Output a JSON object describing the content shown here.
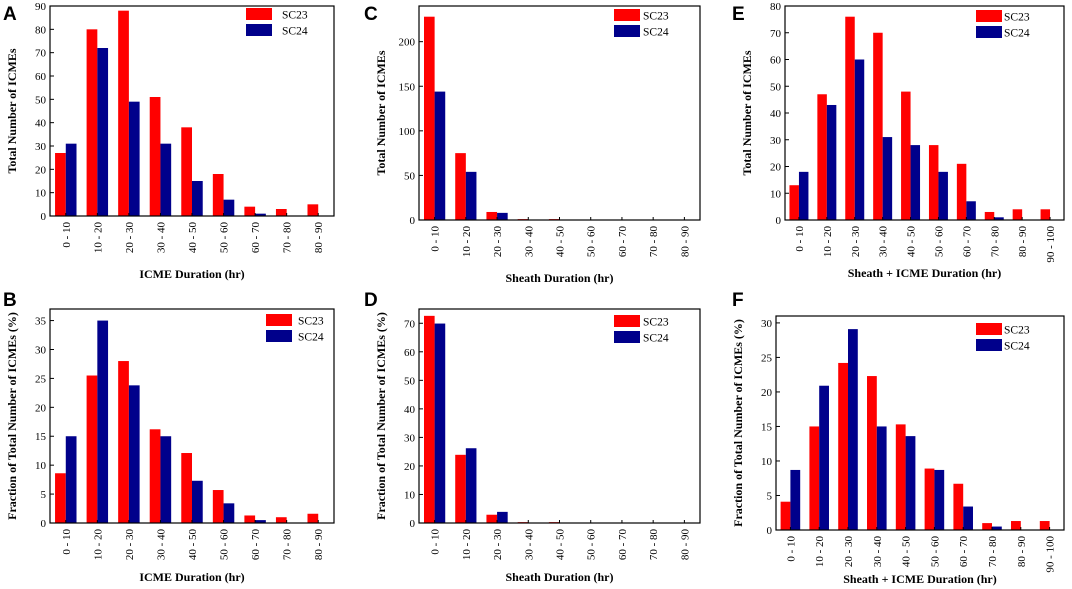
{
  "colors": {
    "SC23": "#ff0000",
    "SC24": "#00008b"
  },
  "chart_data": [
    {
      "panel": "A",
      "type": "bar",
      "xlabel": "ICME Duration (hr)",
      "ylabel": "Total Number of ICMEs",
      "ylim": [
        0,
        90
      ],
      "yticks": [
        0,
        10,
        20,
        30,
        40,
        50,
        60,
        70,
        80,
        90
      ],
      "categories": [
        "0 - 10",
        "10 - 20",
        "20 - 30",
        "30 - 40",
        "40 - 50",
        "50 - 60",
        "60 - 70",
        "70 - 80",
        "80 - 90"
      ],
      "series": [
        {
          "name": "SC23",
          "values": [
            27,
            80,
            88,
            51,
            38,
            18,
            4,
            3,
            5
          ]
        },
        {
          "name": "SC24",
          "values": [
            31,
            72,
            49,
            31,
            15,
            7,
            1,
            0,
            0
          ]
        }
      ],
      "legend": "top-right"
    },
    {
      "panel": "C",
      "type": "bar",
      "xlabel": "Sheath Duration (hr)",
      "ylabel": "Total Number of ICMEs",
      "ylim": [
        0,
        240
      ],
      "yticks": [
        0,
        50,
        100,
        150,
        200
      ],
      "categories": [
        "0 - 10",
        "10 - 20",
        "20 - 30",
        "30 - 40",
        "40 - 50",
        "50 - 60",
        "60 - 70",
        "70 - 80",
        "80 - 90"
      ],
      "series": [
        {
          "name": "SC23",
          "values": [
            228,
            75,
            9,
            1,
            1,
            0,
            0,
            0,
            0
          ]
        },
        {
          "name": "SC24",
          "values": [
            144,
            54,
            8,
            0,
            0,
            0,
            0,
            0,
            0
          ]
        }
      ],
      "legend": "top-right"
    },
    {
      "panel": "E",
      "type": "bar",
      "xlabel": "Sheath + ICME Duration (hr)",
      "ylabel": "Total Number of ICMEs",
      "ylim": [
        0,
        80
      ],
      "yticks": [
        0,
        10,
        20,
        30,
        40,
        50,
        60,
        70,
        80
      ],
      "categories": [
        "0 - 10",
        "10 - 20",
        "20 - 30",
        "30 - 40",
        "40 - 50",
        "50 - 60",
        "60 - 70",
        "70 - 80",
        "80 - 90",
        "90 - 100"
      ],
      "series": [
        {
          "name": "SC23",
          "values": [
            13,
            47,
            76,
            70,
            48,
            28,
            21,
            3,
            4,
            4
          ]
        },
        {
          "name": "SC24",
          "values": [
            18,
            43,
            60,
            31,
            28,
            18,
            7,
            1,
            0,
            0
          ]
        }
      ],
      "legend": "top-right"
    },
    {
      "panel": "B",
      "type": "bar",
      "xlabel": "ICME Duration (hr)",
      "ylabel": "Fraction of Total Number of ICMEs  (%)",
      "ylim": [
        0,
        37
      ],
      "yticks": [
        0,
        5,
        10,
        15,
        20,
        25,
        30,
        35
      ],
      "categories": [
        "0 - 10",
        "10 - 20",
        "20 - 30",
        "30 - 40",
        "40 - 50",
        "50 - 60",
        "60 - 70",
        "70 - 80",
        "80 - 90"
      ],
      "series": [
        {
          "name": "SC23",
          "values": [
            8.6,
            25.5,
            28.0,
            16.2,
            12.1,
            5.7,
            1.3,
            1.0,
            1.6
          ]
        },
        {
          "name": "SC24",
          "values": [
            15.0,
            35.0,
            23.8,
            15.0,
            7.3,
            3.4,
            0.5,
            0,
            0
          ]
        }
      ],
      "legend": "top-right"
    },
    {
      "panel": "D",
      "type": "bar",
      "xlabel": "Sheath Duration (hr)",
      "ylabel": "Fraction of Total Number of ICMEs  (%)",
      "ylim": [
        0,
        75
      ],
      "yticks": [
        0,
        10,
        20,
        30,
        40,
        50,
        60,
        70
      ],
      "categories": [
        "0 - 10",
        "10 - 20",
        "20 - 30",
        "30 - 40",
        "40 - 50",
        "50 - 60",
        "60 - 70",
        "70 - 80",
        "80 - 90"
      ],
      "series": [
        {
          "name": "SC23",
          "values": [
            72.6,
            23.9,
            2.9,
            0.3,
            0.3,
            0,
            0,
            0,
            0
          ]
        },
        {
          "name": "SC24",
          "values": [
            69.9,
            26.2,
            3.9,
            0,
            0,
            0,
            0,
            0,
            0
          ]
        }
      ],
      "legend": "top-right"
    },
    {
      "panel": "F",
      "type": "bar",
      "xlabel": "Sheath + ICME Duration (hr)",
      "ylabel": "Fraction of Total Number of ICMEs  (%)",
      "ylim": [
        0,
        31
      ],
      "yticks": [
        0,
        5,
        10,
        15,
        20,
        25,
        30
      ],
      "categories": [
        "0 - 10",
        "10 - 20",
        "20 - 30",
        "30 - 40",
        "40 - 50",
        "50 - 60",
        "60 - 70",
        "70 - 80",
        "80 - 90",
        "90 - 100"
      ],
      "series": [
        {
          "name": "SC23",
          "values": [
            4.1,
            15.0,
            24.2,
            22.3,
            15.3,
            8.9,
            6.7,
            1.0,
            1.3,
            1.3
          ]
        },
        {
          "name": "SC24",
          "values": [
            8.7,
            20.9,
            29.1,
            15.0,
            13.6,
            8.7,
            3.4,
            0.5,
            0,
            0
          ]
        }
      ],
      "legend": "top-right"
    }
  ]
}
